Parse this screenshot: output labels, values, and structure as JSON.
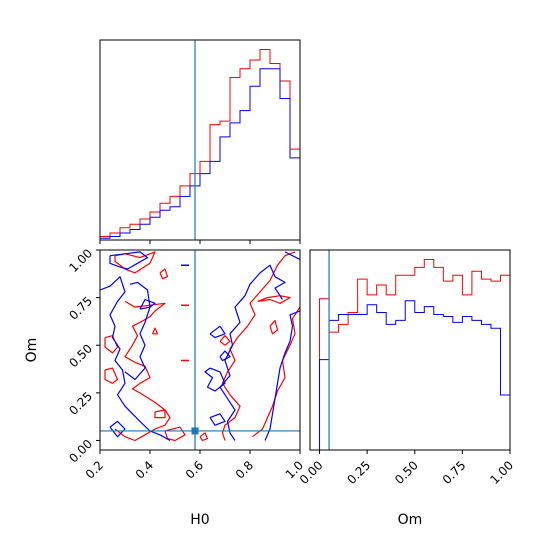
{
  "chart_data": {
    "type": "corner",
    "parameters": [
      "H0",
      "Om"
    ],
    "colors": {
      "red": "#ff0000",
      "blue": "#0000ff",
      "truth": "#1f77b4"
    },
    "truth": {
      "H0": 0.58,
      "Om": 0.05
    },
    "axes": {
      "H0": {
        "label": "H0",
        "range": [
          0.2,
          1.0
        ],
        "ticks": [
          "0.2",
          "0.4",
          "0.6",
          "0.8",
          "1.0"
        ],
        "tick_values": [
          0.2,
          0.4,
          0.6,
          0.8,
          1.0
        ]
      },
      "Om": {
        "label": "Om",
        "range": [
          -0.05,
          1.0
        ],
        "ticks": [
          "0.00",
          "0.25",
          "0.50",
          "0.75",
          "1.00"
        ],
        "tick_values": [
          0.0,
          0.25,
          0.5,
          0.75,
          1.0
        ]
      }
    },
    "hist_h0": {
      "bin_edges": [
        0.2,
        0.24,
        0.28,
        0.32,
        0.36,
        0.4,
        0.44,
        0.48,
        0.52,
        0.56,
        0.6,
        0.64,
        0.68,
        0.72,
        0.76,
        0.8,
        0.84,
        0.88,
        0.92,
        0.96,
        1.0
      ],
      "red": [
        2,
        4,
        7,
        9,
        12,
        16,
        21,
        25,
        31,
        38,
        45,
        66,
        68,
        93,
        98,
        103,
        109,
        101,
        91,
        52
      ],
      "blue": [
        1,
        2,
        4,
        6,
        9,
        13,
        17,
        19,
        25,
        31,
        38,
        45,
        59,
        67,
        74,
        88,
        98,
        98,
        81,
        47
      ]
    },
    "hist_om": {
      "bin_edges": [
        -0.05,
        0.0,
        0.05,
        0.1,
        0.15,
        0.2,
        0.25,
        0.3,
        0.35,
        0.4,
        0.45,
        0.5,
        0.55,
        0.6,
        0.65,
        0.7,
        0.75,
        0.8,
        0.85,
        0.9,
        0.95,
        1.0
      ],
      "red": [
        0,
        77,
        60,
        64,
        70,
        87,
        79,
        84,
        79,
        89,
        89,
        93,
        97,
        93,
        86,
        89,
        79,
        91,
        87,
        86,
        89
      ],
      "blue": [
        0,
        46,
        66,
        69,
        69,
        69,
        74,
        70,
        64,
        66,
        76,
        70,
        73,
        69,
        68,
        65,
        68,
        66,
        64,
        62,
        28
      ]
    },
    "contours": {
      "red": [
        [
          [
            0.26,
            0.97
          ],
          [
            0.3,
            0.98
          ],
          [
            0.36,
            0.96
          ],
          [
            0.42,
            0.99
          ],
          [
            0.4,
            0.93
          ],
          [
            0.34,
            0.88
          ],
          [
            0.3,
            0.9
          ],
          [
            0.26,
            0.94
          ],
          [
            0.26,
            0.97
          ]
        ],
        [
          [
            0.3,
            0.73
          ],
          [
            0.34,
            0.7
          ],
          [
            0.4,
            0.71
          ],
          [
            0.46,
            0.72
          ],
          [
            0.42,
            0.68
          ],
          [
            0.4,
            0.65
          ],
          [
            0.36,
            0.62
          ],
          [
            0.33,
            0.6
          ],
          [
            0.35,
            0.55
          ],
          [
            0.33,
            0.5
          ],
          [
            0.3,
            0.44
          ],
          [
            0.34,
            0.41
          ],
          [
            0.38,
            0.39
          ],
          [
            0.4,
            0.33
          ],
          [
            0.36,
            0.3
          ],
          [
            0.33,
            0.27
          ],
          [
            0.36,
            0.25
          ],
          [
            0.42,
            0.2
          ],
          [
            0.46,
            0.16
          ],
          [
            0.48,
            0.12
          ],
          [
            0.46,
            0.08
          ],
          [
            0.42,
            0.06
          ],
          [
            0.38,
            0.03
          ],
          [
            0.34,
            0.0
          ],
          [
            0.3,
            0.02
          ],
          [
            0.26,
            0.06
          ]
        ],
        [
          [
            0.46,
            0.05
          ],
          [
            0.52,
            0.07
          ],
          [
            0.54,
            0.03
          ],
          [
            0.5,
            0.0
          ],
          [
            0.47,
            0.01
          ],
          [
            0.46,
            0.05
          ]
        ],
        [
          [
            0.44,
            0.88
          ],
          [
            0.46,
            0.9
          ],
          [
            0.47,
            0.86
          ],
          [
            0.45,
            0.85
          ],
          [
            0.44,
            0.88
          ]
        ],
        [
          [
            0.41,
            0.56
          ],
          [
            0.42,
            0.59
          ],
          [
            0.43,
            0.56
          ],
          [
            0.41,
            0.56
          ]
        ],
        [
          [
            0.22,
            0.54
          ],
          [
            0.25,
            0.55
          ],
          [
            0.27,
            0.49
          ],
          [
            0.25,
            0.46
          ],
          [
            0.22,
            0.49
          ],
          [
            0.22,
            0.54
          ]
        ],
        [
          [
            0.22,
            0.37
          ],
          [
            0.25,
            0.38
          ],
          [
            0.27,
            0.32
          ],
          [
            0.25,
            0.3
          ],
          [
            0.22,
            0.32
          ],
          [
            0.22,
            0.37
          ]
        ],
        [
          [
            0.42,
            0.15
          ],
          [
            0.46,
            0.16
          ],
          [
            0.46,
            0.12
          ],
          [
            0.42,
            0.12
          ],
          [
            0.42,
            0.15
          ]
        ],
        [
          [
            0.7,
            0.0
          ],
          [
            0.69,
            0.04
          ],
          [
            0.7,
            0.08
          ],
          [
            0.74,
            0.12
          ],
          [
            0.76,
            0.18
          ],
          [
            0.72,
            0.24
          ],
          [
            0.69,
            0.3
          ],
          [
            0.71,
            0.36
          ],
          [
            0.74,
            0.42
          ],
          [
            0.72,
            0.48
          ],
          [
            0.75,
            0.54
          ],
          [
            0.79,
            0.6
          ],
          [
            0.82,
            0.66
          ],
          [
            0.8,
            0.72
          ],
          [
            0.84,
            0.78
          ],
          [
            0.88,
            0.84
          ],
          [
            0.91,
            0.92
          ],
          [
            0.94,
            0.97
          ],
          [
            0.98,
            0.99
          ]
        ],
        [
          [
            0.81,
            0.02
          ],
          [
            0.85,
            0.06
          ],
          [
            0.87,
            0.12
          ],
          [
            0.89,
            0.18
          ],
          [
            0.91,
            0.26
          ],
          [
            0.94,
            0.33
          ],
          [
            0.93,
            0.42
          ],
          [
            0.96,
            0.5
          ],
          [
            0.98,
            0.56
          ],
          [
            0.97,
            0.64
          ],
          [
            1.0,
            0.7
          ]
        ],
        [
          [
            0.83,
            0.73
          ],
          [
            0.88,
            0.74
          ],
          [
            0.92,
            0.72
          ],
          [
            0.96,
            0.75
          ],
          [
            0.92,
            0.76
          ],
          [
            0.87,
            0.75
          ],
          [
            0.83,
            0.73
          ]
        ],
        [
          [
            0.68,
            0.52
          ],
          [
            0.7,
            0.55
          ],
          [
            0.72,
            0.52
          ],
          [
            0.7,
            0.5
          ],
          [
            0.68,
            0.52
          ]
        ],
        [
          [
            0.6,
            0.02
          ],
          [
            0.62,
            0.04
          ],
          [
            0.63,
            0.01
          ],
          [
            0.61,
            0.0
          ],
          [
            0.6,
            0.02
          ]
        ],
        [
          [
            0.88,
            0.6
          ],
          [
            0.9,
            0.63
          ],
          [
            0.91,
            0.58
          ],
          [
            0.89,
            0.56
          ],
          [
            0.88,
            0.6
          ]
        ]
      ],
      "blue": [
        [
          [
            0.2,
            0.79
          ],
          [
            0.24,
            0.81
          ],
          [
            0.28,
            0.86
          ],
          [
            0.3,
            0.78
          ],
          [
            0.27,
            0.73
          ],
          [
            0.24,
            0.66
          ],
          [
            0.26,
            0.6
          ],
          [
            0.25,
            0.54
          ],
          [
            0.28,
            0.48
          ],
          [
            0.26,
            0.42
          ],
          [
            0.29,
            0.37
          ],
          [
            0.3,
            0.3
          ],
          [
            0.27,
            0.24
          ],
          [
            0.3,
            0.18
          ],
          [
            0.33,
            0.14
          ],
          [
            0.36,
            0.1
          ],
          [
            0.4,
            0.05
          ],
          [
            0.44,
            0.03
          ],
          [
            0.48,
            0.0
          ]
        ],
        [
          [
            0.24,
            0.97
          ],
          [
            0.3,
            0.98
          ],
          [
            0.36,
            0.99
          ],
          [
            0.39,
            0.96
          ],
          [
            0.35,
            0.93
          ],
          [
            0.31,
            0.9
          ],
          [
            0.28,
            0.91
          ],
          [
            0.24,
            0.93
          ],
          [
            0.24,
            0.97
          ]
        ],
        [
          [
            0.32,
            0.82
          ],
          [
            0.35,
            0.83
          ],
          [
            0.39,
            0.79
          ],
          [
            0.4,
            0.7
          ],
          [
            0.38,
            0.62
          ],
          [
            0.36,
            0.56
          ],
          [
            0.38,
            0.5
          ],
          [
            0.36,
            0.44
          ],
          [
            0.38,
            0.38
          ],
          [
            0.34,
            0.32
          ],
          [
            0.3,
            0.36
          ]
        ],
        [
          [
            0.24,
            0.07
          ],
          [
            0.27,
            0.1
          ],
          [
            0.3,
            0.06
          ],
          [
            0.27,
            0.02
          ],
          [
            0.24,
            0.07
          ]
        ],
        [
          [
            0.74,
            0.0
          ],
          [
            0.72,
            0.04
          ],
          [
            0.71,
            0.1
          ],
          [
            0.74,
            0.16
          ],
          [
            0.71,
            0.22
          ],
          [
            0.68,
            0.28
          ],
          [
            0.72,
            0.34
          ],
          [
            0.7,
            0.42
          ],
          [
            0.73,
            0.5
          ],
          [
            0.72,
            0.56
          ],
          [
            0.76,
            0.62
          ],
          [
            0.74,
            0.7
          ],
          [
            0.78,
            0.76
          ],
          [
            0.8,
            0.82
          ],
          [
            0.84,
            0.88
          ],
          [
            0.88,
            0.92
          ],
          [
            0.9,
            0.86
          ],
          [
            0.94,
            0.83
          ],
          [
            0.9,
            0.8
          ],
          [
            0.93,
            0.74
          ]
        ],
        [
          [
            0.86,
            0.0
          ],
          [
            0.88,
            0.06
          ],
          [
            0.89,
            0.14
          ],
          [
            0.9,
            0.22
          ],
          [
            0.91,
            0.3
          ],
          [
            0.92,
            0.38
          ],
          [
            0.94,
            0.46
          ],
          [
            0.96,
            0.52
          ],
          [
            0.97,
            0.6
          ],
          [
            0.96,
            0.66
          ],
          [
            1.0,
            0.68
          ]
        ],
        [
          [
            0.64,
            0.38
          ],
          [
            0.68,
            0.36
          ],
          [
            0.7,
            0.3
          ],
          [
            0.66,
            0.26
          ],
          [
            0.63,
            0.28
          ],
          [
            0.65,
            0.33
          ],
          [
            0.62,
            0.36
          ],
          [
            0.64,
            0.38
          ]
        ],
        [
          [
            0.64,
            0.12
          ],
          [
            0.68,
            0.14
          ],
          [
            0.7,
            0.1
          ],
          [
            0.66,
            0.08
          ],
          [
            0.64,
            0.12
          ]
        ],
        [
          [
            0.64,
            0.56
          ],
          [
            0.68,
            0.6
          ],
          [
            0.7,
            0.56
          ],
          [
            0.66,
            0.54
          ],
          [
            0.64,
            0.56
          ]
        ],
        [
          [
            0.68,
            0.44
          ],
          [
            0.7,
            0.47
          ],
          [
            0.72,
            0.44
          ],
          [
            0.69,
            0.42
          ],
          [
            0.68,
            0.44
          ]
        ],
        [
          [
            0.36,
            0.69
          ],
          [
            0.4,
            0.7
          ],
          [
            0.42,
            0.72
          ],
          [
            0.38,
            0.74
          ],
          [
            0.36,
            0.69
          ]
        ],
        [
          [
            0.94,
            0.99
          ],
          [
            0.97,
            0.97
          ],
          [
            1.0,
            0.95
          ]
        ]
      ]
    },
    "markers": {
      "red_dashes": [
        [
          0.54,
          0.71
        ],
        [
          0.54,
          0.42
        ]
      ],
      "blue_dashes": [
        [
          0.54,
          0.92
        ]
      ]
    },
    "grid": false,
    "legend": "none"
  }
}
